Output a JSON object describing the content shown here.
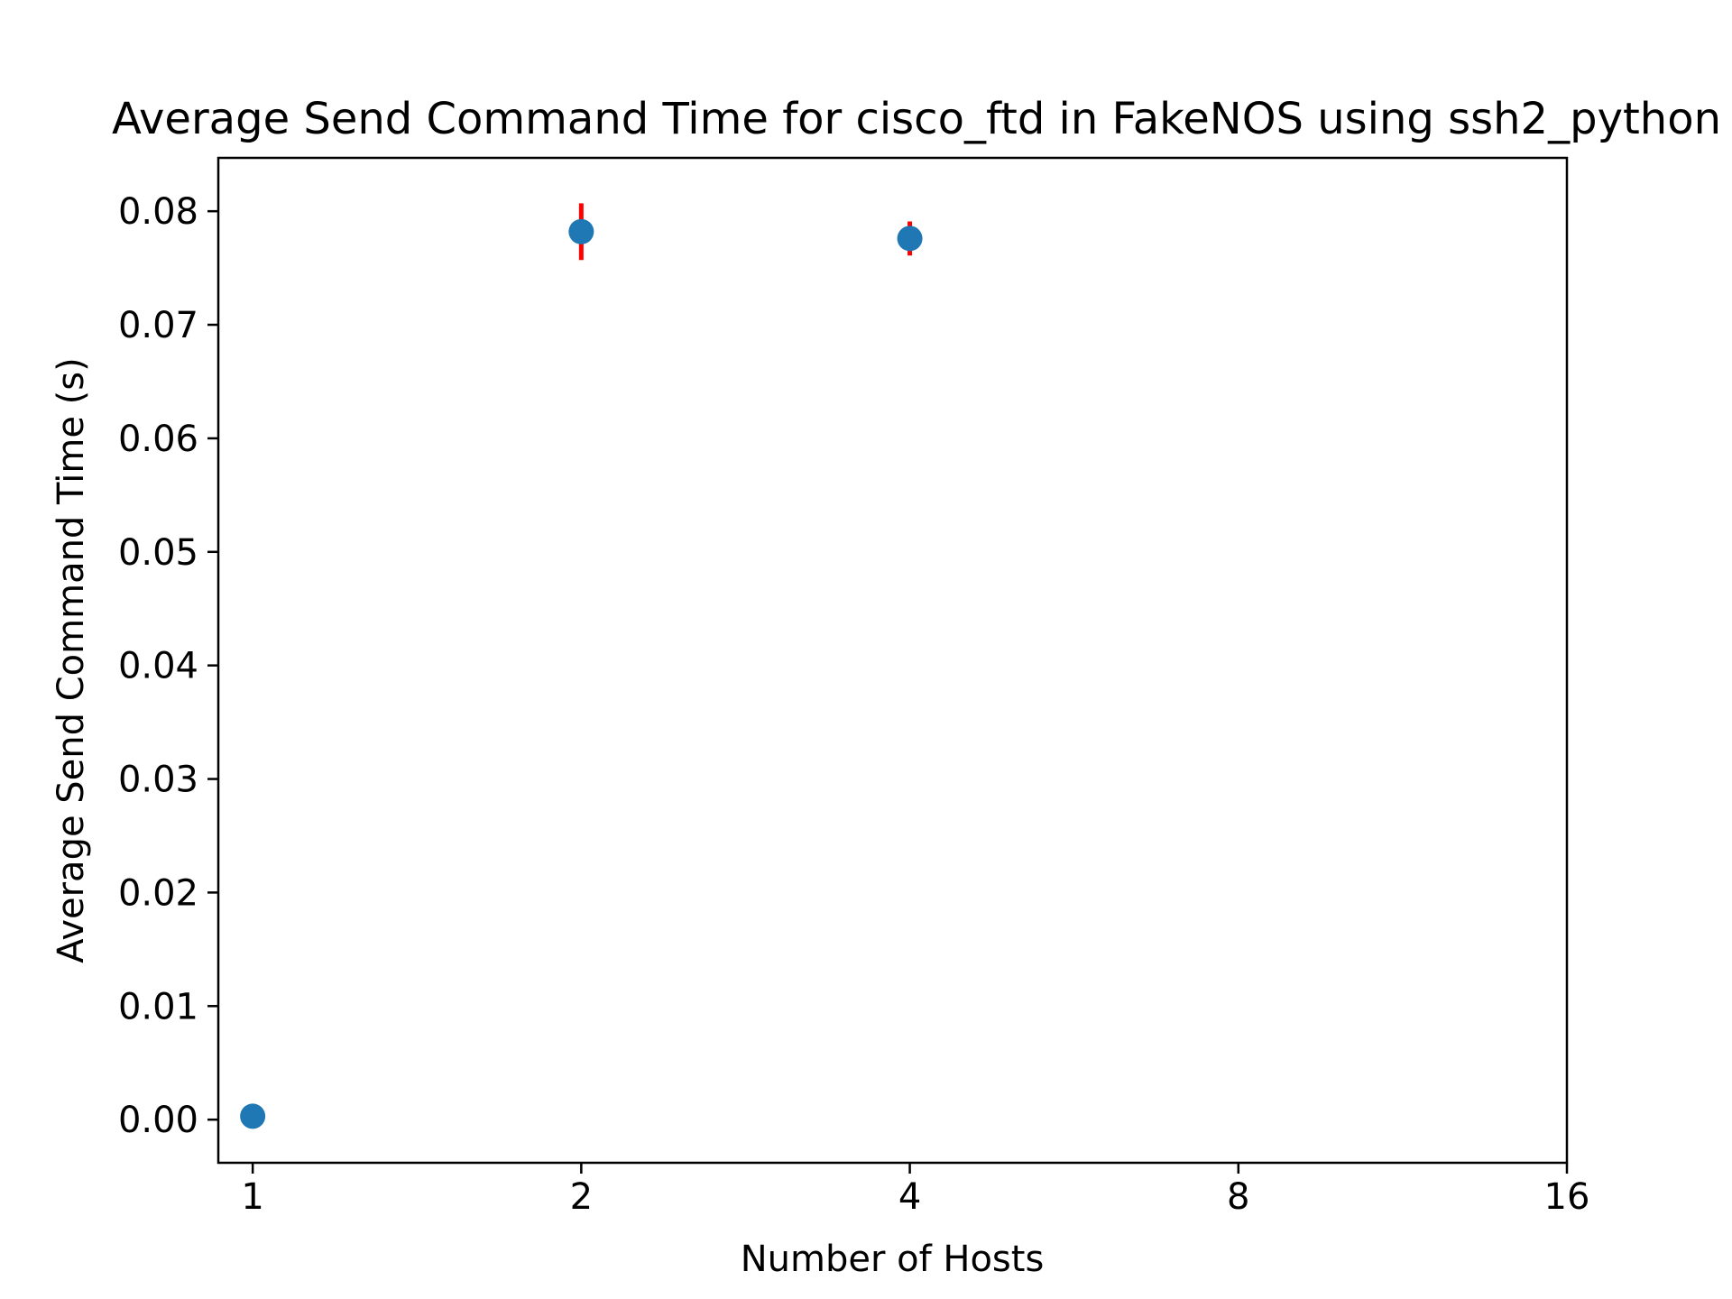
{
  "chart_data": {
    "type": "scatter",
    "title": "Average Send Command Time for cisco_ftd in FakeNOS using ssh2_python",
    "xlabel": "Number of Hosts",
    "ylabel": "Average Send Command Time (s)",
    "x_scale": "log2",
    "x_ticks": [
      1,
      2,
      4,
      8,
      16
    ],
    "x_tick_labels": [
      "1",
      "2",
      "4",
      "8",
      "16"
    ],
    "xlim": [
      0.93,
      16
    ],
    "y_ticks": [
      0.0,
      0.01,
      0.02,
      0.03,
      0.04,
      0.05,
      0.06,
      0.07,
      0.08
    ],
    "y_tick_labels": [
      "0.00",
      "0.01",
      "0.02",
      "0.03",
      "0.04",
      "0.05",
      "0.06",
      "0.07",
      "0.08"
    ],
    "ylim": [
      -0.0038,
      0.0847
    ],
    "grid": false,
    "marker_color": "#1f77b4",
    "errorbar_color": "#ff0000",
    "series": [
      {
        "x": [
          1,
          2,
          4
        ],
        "y": [
          0.0003,
          0.0782,
          0.0776
        ],
        "yerr": [
          0.0,
          0.0025,
          0.0015
        ]
      }
    ]
  }
}
